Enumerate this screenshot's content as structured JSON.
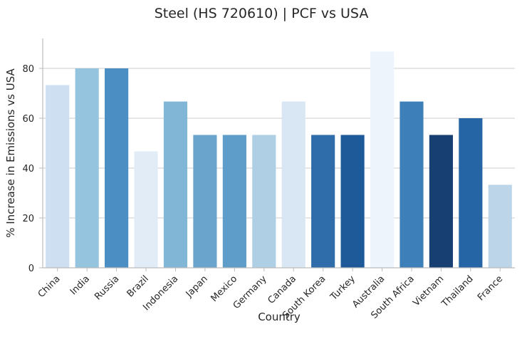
{
  "chart_data": {
    "type": "bar",
    "title": "Steel (HS 720610) | PCF vs USA",
    "xlabel": "Country",
    "ylabel": "% Increase in Emissions vs USA",
    "ylim": [
      0,
      92
    ],
    "yticks": [
      0,
      20,
      40,
      60,
      80
    ],
    "grid": "horizontal",
    "categories": [
      "China",
      "India",
      "Russia",
      "Brazil",
      "Indonesia",
      "Japan",
      "Mexico",
      "Germany",
      "Canada",
      "South Korea",
      "Turkey",
      "Australia",
      "South Africa",
      "Vietnam",
      "Thailand",
      "France"
    ],
    "values": [
      73.3,
      80.0,
      80.0,
      46.7,
      66.7,
      53.3,
      53.3,
      53.3,
      66.7,
      53.3,
      53.3,
      86.7,
      66.7,
      53.3,
      60.0,
      33.3
    ],
    "colors": [
      "#cddff0",
      "#94c4de",
      "#4a8ec3",
      "#e2ecf7",
      "#82b6d6",
      "#6aa4cd",
      "#5e9dca",
      "#afcfe4",
      "#d9e7f4",
      "#2e6da9",
      "#1e5a9a",
      "#eef4fb",
      "#3d7fb9",
      "#173f72",
      "#2565a5",
      "#bcd5e8"
    ]
  }
}
